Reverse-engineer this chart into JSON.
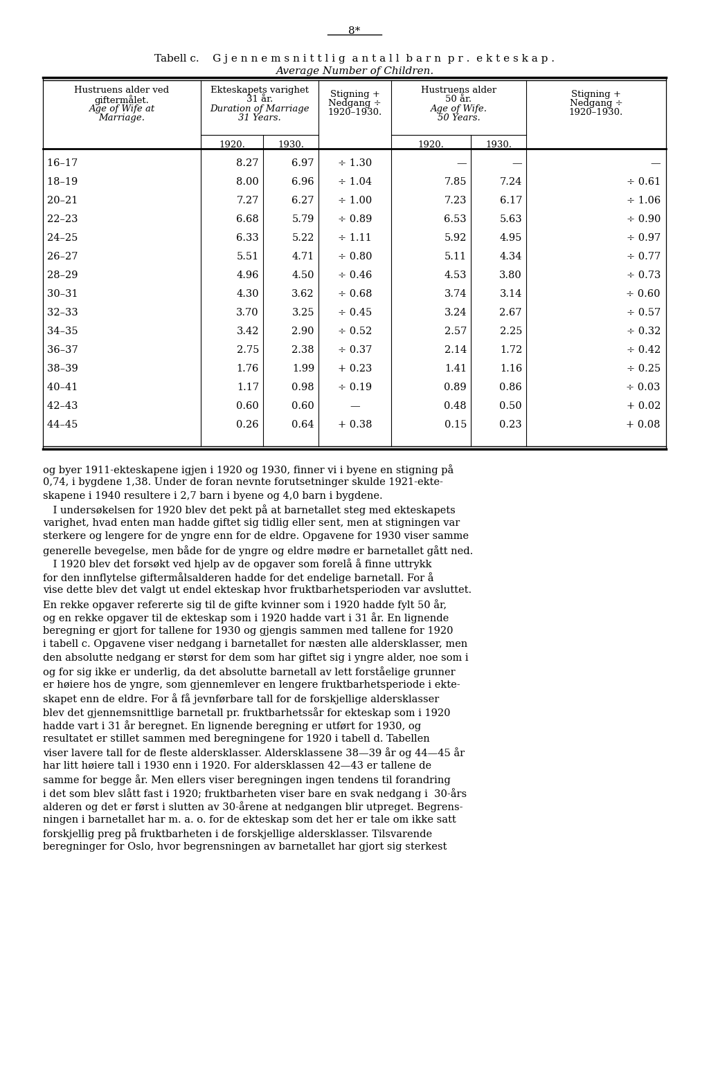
{
  "page_number": "8*",
  "title_norwegian": "Tabell c.    G j e n n e m s n i t t l i g  a n t a l l  b a r n  p r .  e k t e s k a p .",
  "title_english": "Average Number of Children.",
  "rows": [
    [
      "16–17          ",
      "8.27",
      "6.97",
      "÷ 1.30",
      "—",
      "—",
      "—"
    ],
    [
      "18–19          ",
      "8.00",
      "6.96",
      "÷ 1.04",
      "7.85",
      "7.24",
      "÷ 0.61"
    ],
    [
      "20–21          ",
      "7.27",
      "6.27",
      "÷ 1.00",
      "7.23",
      "6.17",
      "÷ 1.06"
    ],
    [
      "22–23          ",
      "6.68",
      "5.79",
      "÷ 0.89",
      "6.53",
      "5.63",
      "÷ 0.90"
    ],
    [
      "24–25          ",
      "6.33",
      "5.22",
      "÷ 1.11",
      "5.92",
      "4.95",
      "÷ 0.97"
    ],
    [
      "26–27          ",
      "5.51",
      "4.71",
      "÷ 0.80",
      "5.11",
      "4.34",
      "÷ 0.77"
    ],
    [
      "28–29          ",
      "4.96",
      "4.50",
      "÷ 0.46",
      "4.53",
      "3.80",
      "÷ 0.73"
    ],
    [
      "30–31          ",
      "4.30",
      "3.62",
      "÷ 0.68",
      "3.74",
      "3.14",
      "÷ 0.60"
    ],
    [
      "32–33          ",
      "3.70",
      "3.25",
      "÷ 0.45",
      "3.24",
      "2.67",
      "÷ 0.57"
    ],
    [
      "34–35          ",
      "3.42",
      "2.90",
      "÷ 0.52",
      "2.57",
      "2.25",
      "÷ 0.32"
    ],
    [
      "36–37          ",
      "2.75",
      "2.38",
      "÷ 0.37",
      "2.14",
      "1.72",
      "÷ 0.42"
    ],
    [
      "38–39          ",
      "1.76",
      "1.99",
      "+ 0.23",
      "1.41",
      "1.16",
      "÷ 0.25"
    ],
    [
      "40–41          ",
      "1.17",
      "0.98",
      "÷ 0.19",
      "0.89",
      "0.86",
      "÷ 0.03"
    ],
    [
      "42–43          ",
      "0.60",
      "0.60",
      "—",
      "0.48",
      "0.50",
      "+ 0.02"
    ],
    [
      "44–45          ",
      "0.26",
      "0.64",
      "+ 0.38",
      "0.15",
      "0.23",
      "+ 0.08"
    ]
  ],
  "body_text": [
    "og byer 1911-ekteskapene igjen i 1920 og 1930, finner vi i byene en stigning på",
    "0,74, i bygdene 1,38. Under de foran nevnte forutsetninger skulde 1921-ekte-",
    "skapene i 1940 resultere i 2,7 barn i byene og 4,0 barn i bygdene.",
    " I undersøkelsen for 1920 blev det pekt på at barnetallet steg med ekteskapets",
    "varighet, hvad enten man hadde giftet sig tidlig eller sent, men at stigningen var",
    "sterkere og lengere for de yngre enn for de eldre. Opgavene for 1930 viser samme",
    "generelle bevegelse, men både for de yngre og eldre mødre er barnetallet gått ned.",
    " I 1920 blev det forsøkt ved hjelp av de opgaver som forelå å finne uttrykk",
    "for den innflytelse giftermålsalderen hadde for det endelige barnetall. For å",
    "vise dette blev det valgt ut endel ekteskap hvor fruktbarhetsperioden var avsluttet.",
    "En rekke opgaver refererte sig til de gifte kvinner som i 1920 hadde fylt 50 år,",
    "og en rekke opgaver til de ekteskap som i 1920 hadde vart i 31 år. En lignende",
    "beregning er gjort for tallene for 1930 og gjengis sammen med tallene for 1920",
    "i tabell c. Opgavene viser nedgang i barnetallet for næsten alle aldersklasser, men",
    "den absolutte nedgang er størst for dem som har giftet sig i yngre alder, noe som i",
    "og for sig ikke er underlig, da det absolutte barnetall av lett forståelige grunner",
    "er høiere hos de yngre, som gjennemlever en lengere fruktbarhetsperiode i ekte-",
    "skapet enn de eldre. For å få jevnførbare tall for de forskjellige aldersklasser",
    "blev det gjennemsnittlige barnetall pr. fruktbarhetssår for ekteskap som i 1920",
    "hadde vart i 31 år beregnet. En lignende beregning er utført for 1930, og",
    "resultatet er stillet sammen med beregningene for 1920 i tabell d. Tabellen",
    "viser lavere tall for de fleste aldersklasser. Aldersklassene 38—39 år og 44—45 år",
    "har litt høiere tall i 1930 enn i 1920. For aldersklassen 42—43 er tallene de",
    "samme for begge år. Men ellers viser beregningen ingen tendens til forandring",
    "i det som blev slått fast i 1920; fruktbarheten viser bare en svak nedgang i  30-års",
    "alderen og det er først i slutten av 30-årene at nedgangen blir utpreget. Begrens-",
    "ningen i barnetallet har m. a. o. for de ekteskap som det her er tale om ikke satt",
    "forskjellig preg på fruktbarheten i de forskjellige aldersklasser. Tilsvarende",
    "beregninger for Oslo, hvor begrensningen av barnetallet har gjort sig sterkest"
  ]
}
